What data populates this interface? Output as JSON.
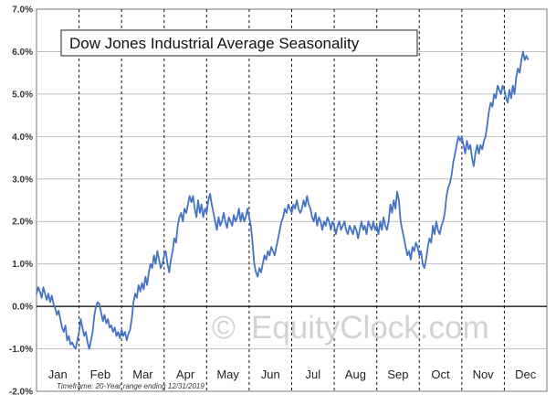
{
  "chart_data": {
    "type": "line",
    "title": "Dow Jones Industrial Average Seasonality",
    "xlabel": "",
    "ylabel": "",
    "ylim": [
      -2.0,
      7.0
    ],
    "y_ticks": [
      "-2.0%",
      "-1.0%",
      "0.0%",
      "1.0%",
      "2.0%",
      "3.0%",
      "4.0%",
      "5.0%",
      "6.0%",
      "7.0%"
    ],
    "x_ticks": [
      "Jan",
      "Feb",
      "Mar",
      "Apr",
      "May",
      "Jun",
      "Jul",
      "Aug",
      "Sep",
      "Oct",
      "Nov",
      "Dec"
    ],
    "grid": true,
    "series_color": "#4472c4",
    "x_unit": "months elapsed since Jan 1",
    "series": [
      {
        "values": [
          [
            0.0,
            0.3
          ],
          [
            0.04,
            0.45
          ],
          [
            0.08,
            0.35
          ],
          [
            0.12,
            0.2
          ],
          [
            0.16,
            0.45
          ],
          [
            0.2,
            0.3
          ],
          [
            0.24,
            0.15
          ],
          [
            0.28,
            0.3
          ],
          [
            0.32,
            0.1
          ],
          [
            0.36,
            0.25
          ],
          [
            0.4,
            0.05
          ],
          [
            0.44,
            -0.05
          ],
          [
            0.48,
            -0.2
          ],
          [
            0.52,
            -0.1
          ],
          [
            0.56,
            -0.3
          ],
          [
            0.6,
            -0.5
          ],
          [
            0.64,
            -0.6
          ],
          [
            0.68,
            -0.45
          ],
          [
            0.72,
            -0.8
          ],
          [
            0.76,
            -0.7
          ],
          [
            0.8,
            -0.9
          ],
          [
            0.84,
            -0.85
          ],
          [
            0.88,
            -0.95
          ],
          [
            0.92,
            -1.0
          ],
          [
            0.96,
            -0.8
          ],
          [
            1.0,
            -0.6
          ],
          [
            1.04,
            -0.3
          ],
          [
            1.08,
            -0.5
          ],
          [
            1.12,
            -0.7
          ],
          [
            1.16,
            -0.6
          ],
          [
            1.2,
            -0.85
          ],
          [
            1.24,
            -1.0
          ],
          [
            1.28,
            -0.8
          ],
          [
            1.32,
            -0.6
          ],
          [
            1.36,
            -0.2
          ],
          [
            1.4,
            0.0
          ],
          [
            1.44,
            0.1
          ],
          [
            1.48,
            0.05
          ],
          [
            1.52,
            -0.15
          ],
          [
            1.56,
            -0.35
          ],
          [
            1.6,
            -0.2
          ],
          [
            1.64,
            -0.4
          ],
          [
            1.68,
            -0.3
          ],
          [
            1.72,
            -0.5
          ],
          [
            1.76,
            -0.45
          ],
          [
            1.8,
            -0.6
          ],
          [
            1.84,
            -0.5
          ],
          [
            1.88,
            -0.7
          ],
          [
            1.92,
            -0.6
          ],
          [
            1.96,
            -0.75
          ],
          [
            2.0,
            -0.55
          ],
          [
            2.04,
            -0.7
          ],
          [
            2.08,
            -0.6
          ],
          [
            2.12,
            -0.8
          ],
          [
            2.16,
            -0.65
          ],
          [
            2.2,
            -0.55
          ],
          [
            2.24,
            -0.3
          ],
          [
            2.28,
            0.1
          ],
          [
            2.32,
            0.3
          ],
          [
            2.36,
            0.2
          ],
          [
            2.4,
            0.5
          ],
          [
            2.44,
            0.35
          ],
          [
            2.48,
            0.55
          ],
          [
            2.52,
            0.4
          ],
          [
            2.56,
            0.7
          ],
          [
            2.6,
            0.5
          ],
          [
            2.64,
            0.8
          ],
          [
            2.68,
            1.0
          ],
          [
            2.72,
            0.9
          ],
          [
            2.76,
            1.2
          ],
          [
            2.8,
            1.0
          ],
          [
            2.84,
            1.3
          ],
          [
            2.88,
            1.1
          ],
          [
            2.92,
            0.9
          ],
          [
            2.96,
            1.0
          ],
          [
            3.0,
            1.2
          ],
          [
            3.04,
            1.3
          ],
          [
            3.08,
            1.0
          ],
          [
            3.12,
            0.8
          ],
          [
            3.16,
            1.1
          ],
          [
            3.2,
            1.3
          ],
          [
            3.24,
            1.6
          ],
          [
            3.28,
            1.5
          ],
          [
            3.32,
            1.9
          ],
          [
            3.36,
            2.1
          ],
          [
            3.4,
            2.2
          ],
          [
            3.44,
            2.0
          ],
          [
            3.48,
            2.3
          ],
          [
            3.52,
            2.2
          ],
          [
            3.56,
            2.4
          ],
          [
            3.6,
            2.6
          ],
          [
            3.64,
            2.45
          ],
          [
            3.68,
            2.6
          ],
          [
            3.72,
            2.3
          ],
          [
            3.76,
            2.1
          ],
          [
            3.8,
            2.5
          ],
          [
            3.84,
            2.2
          ],
          [
            3.88,
            2.4
          ],
          [
            3.92,
            2.1
          ],
          [
            3.96,
            2.3
          ],
          [
            4.0,
            2.2
          ],
          [
            4.04,
            2.5
          ],
          [
            4.08,
            2.65
          ],
          [
            4.12,
            2.4
          ],
          [
            4.16,
            2.2
          ],
          [
            4.2,
            2.0
          ],
          [
            4.24,
            1.8
          ],
          [
            4.28,
            2.1
          ],
          [
            4.32,
            1.9
          ],
          [
            4.36,
            2.0
          ],
          [
            4.4,
            2.2
          ],
          [
            4.44,
            2.0
          ],
          [
            4.48,
            1.85
          ],
          [
            4.52,
            2.1
          ],
          [
            4.56,
            2.0
          ],
          [
            4.6,
            1.9
          ],
          [
            4.64,
            2.15
          ],
          [
            4.68,
            2.0
          ],
          [
            4.72,
            2.1
          ],
          [
            4.76,
            2.3
          ],
          [
            4.8,
            2.0
          ],
          [
            4.84,
            2.2
          ],
          [
            4.88,
            2.0
          ],
          [
            4.92,
            2.1
          ],
          [
            4.96,
            2.3
          ],
          [
            5.0,
            2.1
          ],
          [
            5.04,
            1.9
          ],
          [
            5.08,
            1.5
          ],
          [
            5.12,
            1.0
          ],
          [
            5.16,
            0.8
          ],
          [
            5.2,
            0.7
          ],
          [
            5.24,
            0.9
          ],
          [
            5.28,
            0.8
          ],
          [
            5.32,
            1.0
          ],
          [
            5.36,
            1.2
          ],
          [
            5.4,
            1.1
          ],
          [
            5.44,
            1.3
          ],
          [
            5.48,
            1.2
          ],
          [
            5.52,
            1.4
          ],
          [
            5.56,
            1.3
          ],
          [
            5.6,
            1.2
          ],
          [
            5.64,
            1.4
          ],
          [
            5.68,
            1.6
          ],
          [
            5.72,
            1.8
          ],
          [
            5.76,
            2.0
          ],
          [
            5.8,
            2.1
          ],
          [
            5.84,
            2.3
          ],
          [
            5.88,
            2.2
          ],
          [
            5.92,
            2.4
          ],
          [
            5.96,
            2.3
          ],
          [
            6.0,
            2.2
          ],
          [
            6.04,
            2.4
          ],
          [
            6.08,
            2.3
          ],
          [
            6.12,
            2.5
          ],
          [
            6.16,
            2.3
          ],
          [
            6.2,
            2.2
          ],
          [
            6.24,
            2.3
          ],
          [
            6.28,
            2.5
          ],
          [
            6.32,
            2.35
          ],
          [
            6.36,
            2.6
          ],
          [
            6.4,
            2.4
          ],
          [
            6.44,
            2.3
          ],
          [
            6.48,
            2.1
          ],
          [
            6.52,
            2.0
          ],
          [
            6.56,
            2.2
          ],
          [
            6.6,
            1.9
          ],
          [
            6.64,
            2.1
          ],
          [
            6.68,
            2.0
          ],
          [
            6.72,
            1.8
          ],
          [
            6.76,
            2.0
          ],
          [
            6.8,
            1.9
          ],
          [
            6.84,
            2.1
          ],
          [
            6.88,
            2.0
          ],
          [
            6.92,
            1.8
          ],
          [
            6.96,
            2.0
          ],
          [
            7.0,
            1.9
          ],
          [
            7.04,
            1.7
          ],
          [
            7.08,
            1.9
          ],
          [
            7.12,
            2.0
          ],
          [
            7.16,
            1.8
          ],
          [
            7.2,
            1.9
          ],
          [
            7.24,
            2.0
          ],
          [
            7.28,
            1.8
          ],
          [
            7.32,
            1.7
          ],
          [
            7.36,
            1.9
          ],
          [
            7.4,
            1.8
          ],
          [
            7.44,
            1.7
          ],
          [
            7.48,
            1.9
          ],
          [
            7.52,
            1.8
          ],
          [
            7.56,
            1.6
          ],
          [
            7.6,
            1.8
          ],
          [
            7.64,
            2.0
          ],
          [
            7.68,
            1.8
          ],
          [
            7.72,
            1.9
          ],
          [
            7.76,
            1.7
          ],
          [
            7.8,
            2.0
          ],
          [
            7.84,
            1.9
          ],
          [
            7.88,
            1.8
          ],
          [
            7.92,
            2.0
          ],
          [
            7.96,
            1.8
          ],
          [
            8.0,
            1.9
          ],
          [
            8.04,
            1.7
          ],
          [
            8.08,
            2.0
          ],
          [
            8.12,
            1.8
          ],
          [
            8.16,
            2.1
          ],
          [
            8.2,
            1.9
          ],
          [
            8.24,
            1.8
          ],
          [
            8.28,
            2.0
          ],
          [
            8.32,
            2.4
          ],
          [
            8.36,
            2.2
          ],
          [
            8.4,
            2.5
          ],
          [
            8.44,
            2.3
          ],
          [
            8.48,
            2.7
          ],
          [
            8.52,
            2.5
          ],
          [
            8.56,
            2.0
          ],
          [
            8.6,
            1.8
          ],
          [
            8.64,
            1.6
          ],
          [
            8.68,
            1.4
          ],
          [
            8.72,
            1.2
          ],
          [
            8.76,
            1.3
          ],
          [
            8.8,
            1.1
          ],
          [
            8.84,
            1.4
          ],
          [
            8.88,
            1.3
          ],
          [
            8.92,
            1.5
          ],
          [
            8.96,
            1.4
          ],
          [
            9.0,
            1.2
          ],
          [
            9.04,
            1.3
          ],
          [
            9.08,
            1.0
          ],
          [
            9.12,
            0.9
          ],
          [
            9.16,
            1.1
          ],
          [
            9.2,
            1.4
          ],
          [
            9.24,
            1.6
          ],
          [
            9.28,
            1.5
          ],
          [
            9.32,
            1.9
          ],
          [
            9.36,
            1.7
          ],
          [
            9.4,
            2.0
          ],
          [
            9.44,
            1.8
          ],
          [
            9.48,
            1.7
          ],
          [
            9.52,
            1.9
          ],
          [
            9.56,
            2.0
          ],
          [
            9.6,
            2.2
          ],
          [
            9.64,
            2.6
          ],
          [
            9.68,
            2.8
          ],
          [
            9.72,
            2.9
          ],
          [
            9.76,
            3.1
          ],
          [
            9.8,
            3.4
          ],
          [
            9.84,
            3.6
          ],
          [
            9.88,
            3.8
          ],
          [
            9.92,
            4.0
          ],
          [
            9.96,
            3.9
          ],
          [
            10.0,
            4.0
          ],
          [
            10.04,
            3.8
          ],
          [
            10.08,
            3.6
          ],
          [
            10.12,
            3.9
          ],
          [
            10.16,
            3.7
          ],
          [
            10.2,
            3.8
          ],
          [
            10.24,
            3.5
          ],
          [
            10.28,
            3.3
          ],
          [
            10.32,
            3.6
          ],
          [
            10.36,
            3.8
          ],
          [
            10.4,
            3.6
          ],
          [
            10.44,
            3.8
          ],
          [
            10.48,
            3.7
          ],
          [
            10.52,
            3.9
          ],
          [
            10.56,
            4.0
          ],
          [
            10.6,
            4.3
          ],
          [
            10.64,
            4.6
          ],
          [
            10.68,
            4.8
          ],
          [
            10.72,
            4.7
          ],
          [
            10.76,
            5.0
          ],
          [
            10.8,
            4.9
          ],
          [
            10.84,
            5.2
          ],
          [
            10.88,
            5.1
          ],
          [
            10.92,
            5.0
          ],
          [
            10.96,
            5.2
          ],
          [
            11.0,
            5.1
          ],
          [
            11.04,
            4.9
          ],
          [
            11.08,
            4.8
          ],
          [
            11.12,
            5.1
          ],
          [
            11.16,
            4.9
          ],
          [
            11.2,
            5.2
          ],
          [
            11.24,
            5.0
          ],
          [
            11.28,
            5.4
          ],
          [
            11.32,
            5.6
          ],
          [
            11.36,
            5.5
          ],
          [
            11.4,
            5.8
          ],
          [
            11.44,
            6.0
          ],
          [
            11.48,
            5.8
          ],
          [
            11.52,
            5.9
          ],
          [
            11.56,
            5.8
          ]
        ]
      }
    ],
    "footnote": "Timeframe: 20-Year range ending 12/31/2019",
    "watermark_symbol": "©",
    "watermark": "EquityClock.com"
  }
}
